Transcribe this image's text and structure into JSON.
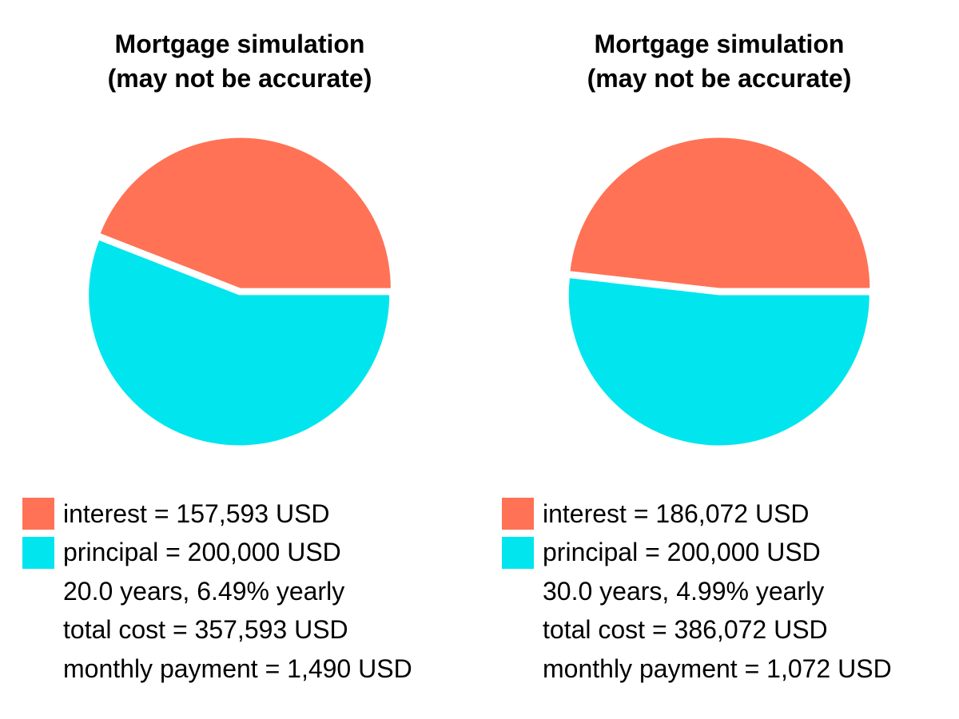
{
  "chart_data": [
    {
      "type": "pie",
      "title_lines": [
        "Mortgage simulation",
        "(may not be accurate)"
      ],
      "slices": [
        {
          "key": "interest",
          "value": 157593,
          "color": "#ff7256"
        },
        {
          "key": "principal",
          "value": 200000,
          "color": "#00e5ee"
        }
      ],
      "legend": [
        "interest = 157,593 USD",
        "principal = 200,000 USD",
        "20.0 years, 6.49% yearly",
        "total cost = 357,593 USD",
        "monthly payment = 1,490 USD"
      ]
    },
    {
      "type": "pie",
      "title_lines": [
        "Mortgage simulation",
        "(may not be accurate)"
      ],
      "slices": [
        {
          "key": "interest",
          "value": 186072,
          "color": "#ff7256"
        },
        {
          "key": "principal",
          "value": 200000,
          "color": "#00e5ee"
        }
      ],
      "legend": [
        "interest = 186,072 USD",
        "principal = 200,000 USD",
        "30.0 years, 4.99% yearly",
        "total cost = 386,072 USD",
        "monthly payment = 1,072 USD"
      ]
    }
  ],
  "colors": {
    "interest": "#ff7256",
    "principal": "#00e5ee",
    "background": "#ffffff"
  }
}
